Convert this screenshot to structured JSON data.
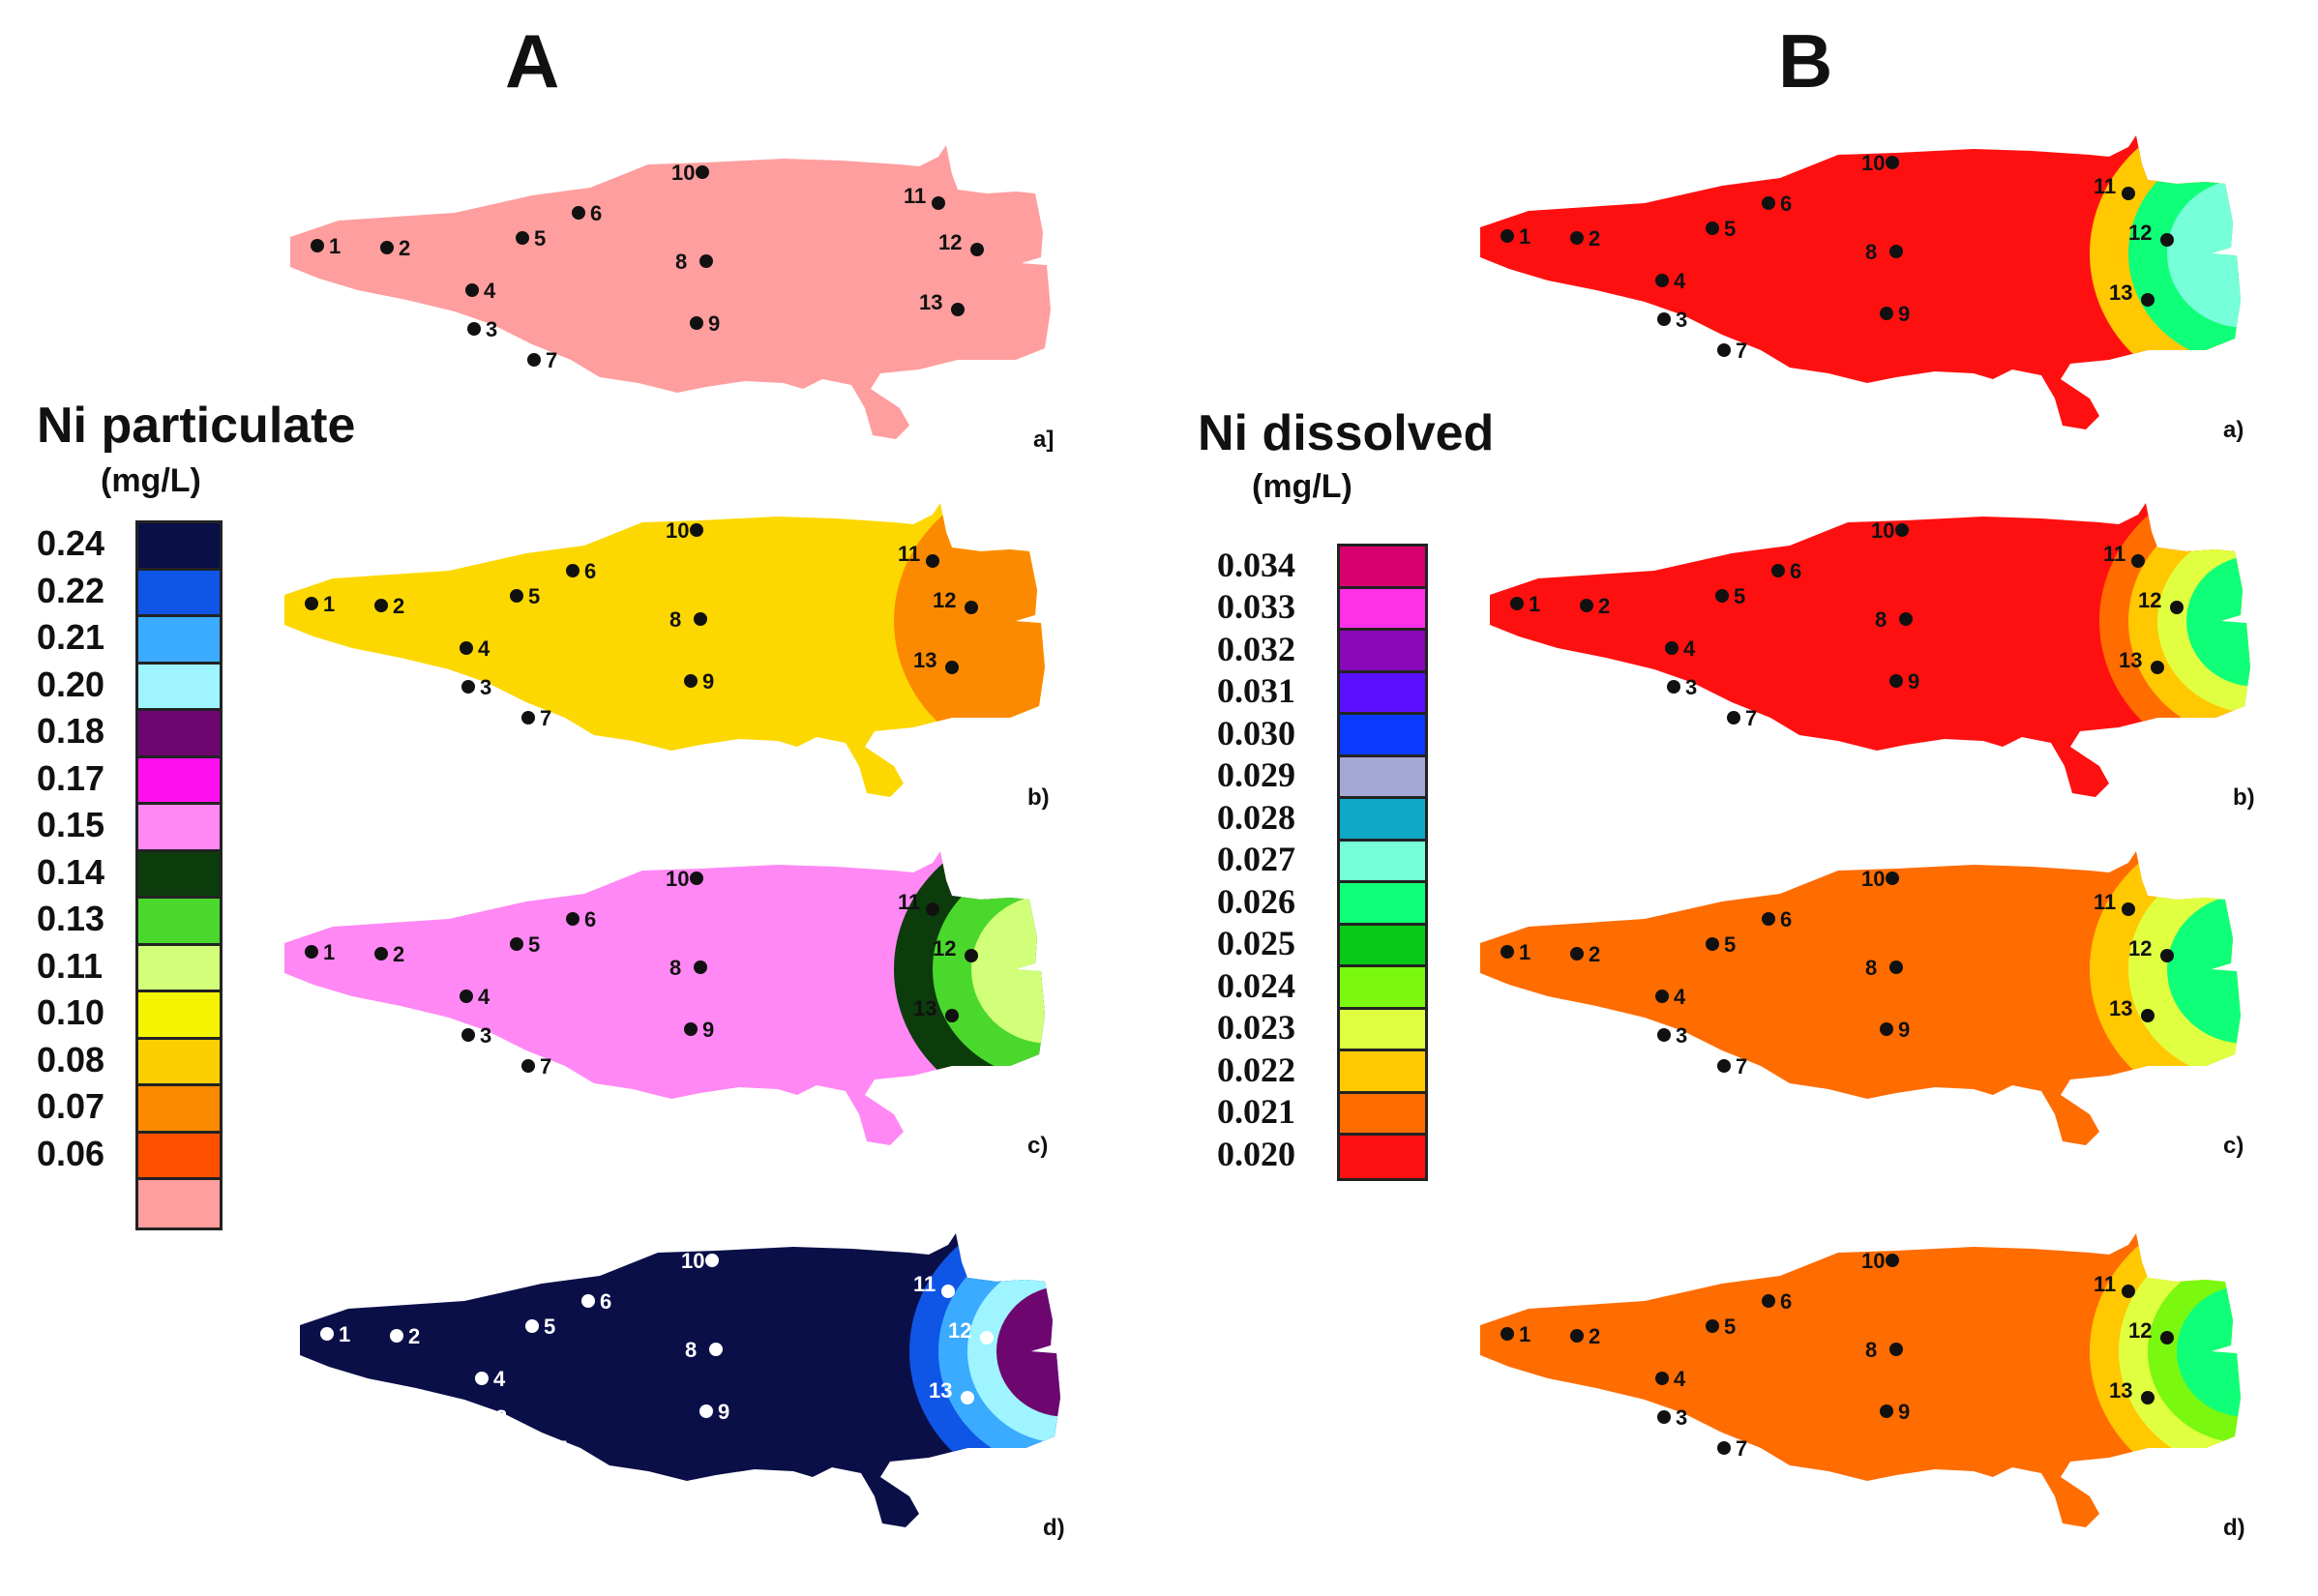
{
  "panels": {
    "A": {
      "letter": "A"
    },
    "B": {
      "letter": "B"
    }
  },
  "legends": {
    "particulate": {
      "title": "Ni particulate",
      "unit": "(mg/L)",
      "entries": [
        {
          "label": "0.24",
          "color": "#0a0f48"
        },
        {
          "label": "0.22",
          "color": "#0f55e6"
        },
        {
          "label": "0.21",
          "color": "#3aabff"
        },
        {
          "label": "0.20",
          "color": "#9ef4ff"
        },
        {
          "label": "0.18",
          "color": "#6e0670"
        },
        {
          "label": "0.17",
          "color": "#ff10ee"
        },
        {
          "label": "0.15",
          "color": "#ff88f4"
        },
        {
          "label": "0.14",
          "color": "#0c3c0c"
        },
        {
          "label": "0.13",
          "color": "#4ad82c"
        },
        {
          "label": "0.11",
          "color": "#d2ff7a"
        },
        {
          "label": "0.10",
          "color": "#f4f400"
        },
        {
          "label": "0.08",
          "color": "#fcd000"
        },
        {
          "label": "0.07",
          "color": "#fc8a00"
        },
        {
          "label": "0.06",
          "color": "#fc5000"
        },
        {
          "label": "",
          "color": "#ff9e9e"
        }
      ]
    },
    "dissolved": {
      "title": "Ni dissolved",
      "unit": "(mg/L)",
      "entries": [
        {
          "label": "0.034",
          "color": "#d8006c"
        },
        {
          "label": "0.033",
          "color": "#ff30e8"
        },
        {
          "label": "0.032",
          "color": "#8a08b8"
        },
        {
          "label": "0.031",
          "color": "#5a10ff"
        },
        {
          "label": "0.030",
          "color": "#0a3aff"
        },
        {
          "label": "0.029",
          "color": "#a4a6d4"
        },
        {
          "label": "0.028",
          "color": "#10a8c8"
        },
        {
          "label": "0.027",
          "color": "#76ffd8"
        },
        {
          "label": "0.026",
          "color": "#10ff78"
        },
        {
          "label": "0.025",
          "color": "#08c818"
        },
        {
          "label": "0.024",
          "color": "#7af810"
        },
        {
          "label": "0.023",
          "color": "#e0ff40"
        },
        {
          "label": "0.022",
          "color": "#ffc800"
        },
        {
          "label": "0.021",
          "color": "#ff6c00"
        },
        {
          "label": "0.020",
          "color": "#ff1010"
        }
      ]
    }
  },
  "maps": [
    {
      "id": "A-a",
      "sublabel": "a]",
      "base_color": "#ff9e9e",
      "station_color": "#111111",
      "right_zones": []
    },
    {
      "id": "A-b",
      "sublabel": "b)",
      "base_color": "#fcd800",
      "station_color": "#111111",
      "right_zones": [
        {
          "color": "#fc8a00"
        }
      ]
    },
    {
      "id": "A-c",
      "sublabel": "c)",
      "base_color": "#ff88f4",
      "station_color": "#111111",
      "right_zones": [
        {
          "color": "#0c3c0c"
        },
        {
          "color": "#4ad82c"
        },
        {
          "color": "#d2ff7a"
        }
      ]
    },
    {
      "id": "A-d",
      "sublabel": "d)",
      "base_color": "#0a0f48",
      "station_color": "#ffffff",
      "right_zones": [
        {
          "color": "#0f55e6"
        },
        {
          "color": "#3aabff"
        },
        {
          "color": "#9ef4ff"
        },
        {
          "color": "#6e0670"
        }
      ]
    },
    {
      "id": "B-a",
      "sublabel": "a)",
      "base_color": "#ff1010",
      "station_color": "#111111",
      "right_zones": [
        {
          "color": "#ffc800"
        },
        {
          "color": "#10ff78"
        },
        {
          "color": "#76ffd8"
        }
      ]
    },
    {
      "id": "B-b",
      "sublabel": "b)",
      "base_color": "#ff1010",
      "station_color": "#111111",
      "right_zones": [
        {
          "color": "#ff6c00"
        },
        {
          "color": "#ffc800"
        },
        {
          "color": "#e0ff40"
        },
        {
          "color": "#10ff78"
        }
      ]
    },
    {
      "id": "B-c",
      "sublabel": "c)",
      "base_color": "#ff6c00",
      "station_color": "#111111",
      "right_zones": [
        {
          "color": "#ffc800"
        },
        {
          "color": "#e0ff40"
        },
        {
          "color": "#10ff78"
        }
      ]
    },
    {
      "id": "B-d",
      "sublabel": "d)",
      "base_color": "#ff6c00",
      "station_color": "#111111",
      "right_zones": [
        {
          "color": "#ffc800"
        },
        {
          "color": "#e0ff40"
        },
        {
          "color": "#7af810"
        },
        {
          "color": "#10ff78"
        }
      ]
    }
  ],
  "stations": [
    "1",
    "2",
    "3",
    "4",
    "5",
    "6",
    "7",
    "8",
    "9",
    "10",
    "11",
    "12",
    "13"
  ]
}
